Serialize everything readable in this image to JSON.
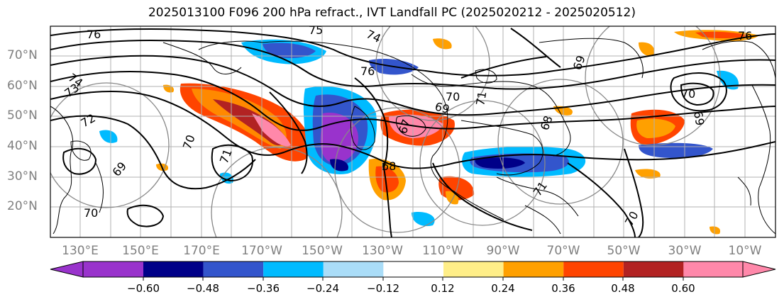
{
  "title": "2025013100 F096 200 hPa refract., IVT Landfall PC (2025020212 - 2025020512)",
  "lat_labels": [
    "70°N",
    "60°N",
    "50°N",
    "40°N",
    "30°N",
    "20°N"
  ],
  "lon_labels": [
    "130°E",
    "150°E",
    "170°E",
    "170°W",
    "150°W",
    "130°W",
    "110°W",
    "90°W",
    "70°W",
    "50°W",
    "30°W",
    "10°W"
  ],
  "colorbar": {
    "colors": [
      "#9933cc",
      "#000088",
      "#3355cc",
      "#00bbff",
      "#aaddf8",
      "#ffffff",
      "#ffee88",
      "#ffa000",
      "#ff4400",
      "#b22222",
      "#ff88aa"
    ],
    "tick_labels": [
      "−0.60",
      "−0.48",
      "−0.36",
      "−0.24",
      "−0.12",
      "0.12",
      "0.24",
      "0.36",
      "0.48",
      "0.60"
    ]
  },
  "contour_labels": [
    "76",
    "75",
    "74",
    "73",
    "72",
    "71",
    "70",
    "69",
    "68",
    "76",
    "74",
    "70",
    "69",
    "67",
    "71",
    "70",
    "70",
    "69",
    "70",
    "76",
    "71",
    "69",
    "68"
  ]
}
